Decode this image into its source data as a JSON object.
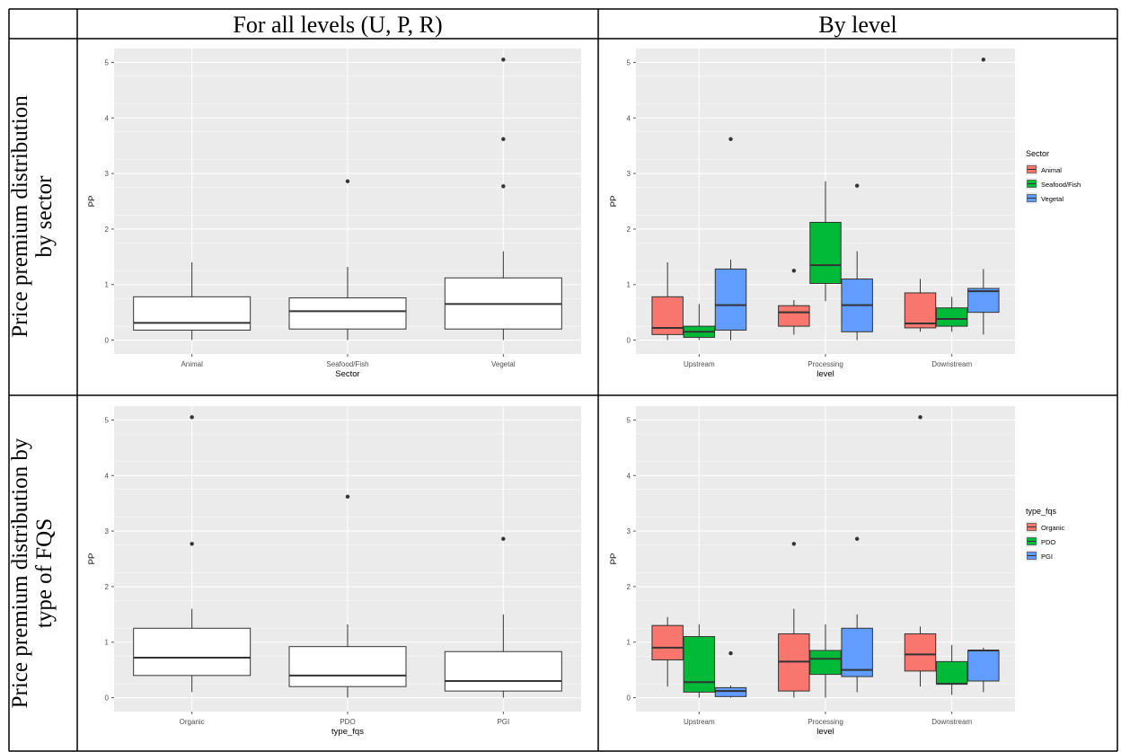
{
  "table": {
    "col_header_all": "For all levels (U, P, R)",
    "col_header_level": "By level",
    "row_sector": [
      "Price premium distribution",
      "by sector"
    ],
    "row_fqs": [
      "Price premium distribution by",
      "type of FQS"
    ]
  },
  "colors": {
    "panel_bg": "#ebebeb",
    "grid": "#ffffff",
    "red": "#f8766d",
    "green": "#00ba38",
    "blue": "#619cff",
    "box_fill_plain": "#ffffff",
    "outline": "#333333"
  },
  "chart_data": [
    {
      "id": "sector_all",
      "type": "box",
      "xlabel": "Sector",
      "ylabel": "PP",
      "ylim": [
        -0.25,
        5.25
      ],
      "yticks": [
        0,
        1,
        2,
        3,
        4,
        5
      ],
      "categories": [
        "Animal",
        "Seafood/Fish",
        "Vegetal"
      ],
      "boxes": [
        {
          "category": "Animal",
          "min": 0.0,
          "q1": 0.18,
          "median": 0.31,
          "q3": 0.78,
          "max": 1.4,
          "outliers": []
        },
        {
          "category": "Seafood/Fish",
          "min": 0.0,
          "q1": 0.2,
          "median": 0.52,
          "q3": 0.76,
          "max": 1.32,
          "outliers": [
            2.86
          ]
        },
        {
          "category": "Vegetal",
          "min": 0.0,
          "q1": 0.2,
          "median": 0.65,
          "q3": 1.12,
          "max": 1.6,
          "outliers": [
            2.77,
            3.62,
            5.05
          ]
        }
      ]
    },
    {
      "id": "sector_level",
      "type": "box",
      "xlabel": "level",
      "ylabel": "PP",
      "ylim": [
        -0.25,
        5.25
      ],
      "yticks": [
        0,
        1,
        2,
        3,
        4,
        5
      ],
      "categories": [
        "Upstream",
        "Processing",
        "Downstream"
      ],
      "legend": {
        "title": "Sector",
        "position": "right",
        "items": [
          "Animal",
          "Seafood/Fish",
          "Vegetal"
        ]
      },
      "groups": [
        {
          "category": "Upstream",
          "boxes": [
            {
              "series": "Animal",
              "min": 0.0,
              "q1": 0.1,
              "median": 0.22,
              "q3": 0.78,
              "max": 1.4,
              "outliers": []
            },
            {
              "series": "Seafood/Fish",
              "min": 0.0,
              "q1": 0.05,
              "median": 0.15,
              "q3": 0.25,
              "max": 0.65,
              "outliers": []
            },
            {
              "series": "Vegetal",
              "min": 0.0,
              "q1": 0.18,
              "median": 0.63,
              "q3": 1.28,
              "max": 1.45,
              "outliers": [
                3.62
              ]
            }
          ]
        },
        {
          "category": "Processing",
          "boxes": [
            {
              "series": "Animal",
              "min": 0.1,
              "q1": 0.25,
              "median": 0.5,
              "q3": 0.62,
              "max": 0.72,
              "outliers": [
                1.25
              ]
            },
            {
              "series": "Seafood/Fish",
              "min": 0.7,
              "q1": 1.02,
              "median": 1.35,
              "q3": 2.12,
              "max": 2.86,
              "outliers": []
            },
            {
              "series": "Vegetal",
              "min": 0.0,
              "q1": 0.15,
              "median": 0.63,
              "q3": 1.1,
              "max": 1.6,
              "outliers": [
                2.78
              ]
            }
          ]
        },
        {
          "category": "Downstream",
          "boxes": [
            {
              "series": "Animal",
              "min": 0.15,
              "q1": 0.22,
              "median": 0.3,
              "q3": 0.85,
              "max": 1.1,
              "outliers": []
            },
            {
              "series": "Seafood/Fish",
              "min": 0.15,
              "q1": 0.25,
              "median": 0.38,
              "q3": 0.58,
              "max": 0.78,
              "outliers": []
            },
            {
              "series": "Vegetal",
              "min": 0.1,
              "q1": 0.5,
              "median": 0.88,
              "q3": 0.93,
              "max": 1.28,
              "outliers": [
                5.05
              ]
            }
          ]
        }
      ]
    },
    {
      "id": "fqs_all",
      "type": "box",
      "xlabel": "type_fqs",
      "ylabel": "PP",
      "ylim": [
        -0.25,
        5.25
      ],
      "yticks": [
        0,
        1,
        2,
        3,
        4,
        5
      ],
      "categories": [
        "Organic",
        "PDO",
        "PGI"
      ],
      "boxes": [
        {
          "category": "Organic",
          "min": 0.1,
          "q1": 0.4,
          "median": 0.72,
          "q3": 1.25,
          "max": 1.6,
          "outliers": [
            2.77,
            5.05
          ]
        },
        {
          "category": "PDO",
          "min": 0.0,
          "q1": 0.2,
          "median": 0.4,
          "q3": 0.92,
          "max": 1.32,
          "outliers": [
            3.62
          ]
        },
        {
          "category": "PGI",
          "min": 0.0,
          "q1": 0.12,
          "median": 0.3,
          "q3": 0.83,
          "max": 1.5,
          "outliers": [
            2.86
          ]
        }
      ]
    },
    {
      "id": "fqs_level",
      "type": "box",
      "xlabel": "level",
      "ylabel": "PP",
      "ylim": [
        -0.25,
        5.25
      ],
      "yticks": [
        0,
        1,
        2,
        3,
        4,
        5
      ],
      "categories": [
        "Upstream",
        "Processing",
        "Downstream"
      ],
      "legend": {
        "title": "type_fqs",
        "position": "right",
        "items": [
          "Organic",
          "PDO",
          "PGI"
        ]
      },
      "groups": [
        {
          "category": "Upstream",
          "boxes": [
            {
              "series": "Organic",
              "min": 0.2,
              "q1": 0.68,
              "median": 0.9,
              "q3": 1.3,
              "max": 1.45,
              "outliers": []
            },
            {
              "series": "PDO",
              "min": 0.0,
              "q1": 0.1,
              "median": 0.28,
              "q3": 1.1,
              "max": 1.32,
              "outliers": []
            },
            {
              "series": "PGI",
              "min": 0.0,
              "q1": 0.02,
              "median": 0.12,
              "q3": 0.18,
              "max": 0.22,
              "outliers": [
                0.8
              ]
            }
          ]
        },
        {
          "category": "Processing",
          "boxes": [
            {
              "series": "Organic",
              "min": 0.0,
              "q1": 0.12,
              "median": 0.65,
              "q3": 1.15,
              "max": 1.6,
              "outliers": [
                2.77
              ]
            },
            {
              "series": "PDO",
              "min": 0.0,
              "q1": 0.42,
              "median": 0.7,
              "q3": 0.85,
              "max": 1.32,
              "outliers": []
            },
            {
              "series": "PGI",
              "min": 0.1,
              "q1": 0.38,
              "median": 0.5,
              "q3": 1.25,
              "max": 1.5,
              "outliers": [
                2.86
              ]
            }
          ]
        },
        {
          "category": "Downstream",
          "boxes": [
            {
              "series": "Organic",
              "min": 0.2,
              "q1": 0.48,
              "median": 0.78,
              "q3": 1.15,
              "max": 1.28,
              "outliers": [
                5.05
              ]
            },
            {
              "series": "PDO",
              "min": 0.05,
              "q1": 0.25,
              "median": 0.25,
              "q3": 0.65,
              "max": 0.95,
              "outliers": []
            },
            {
              "series": "PGI",
              "min": 0.1,
              "q1": 0.3,
              "median": 0.85,
              "q3": 0.85,
              "max": 0.9,
              "outliers": []
            }
          ]
        }
      ]
    }
  ]
}
